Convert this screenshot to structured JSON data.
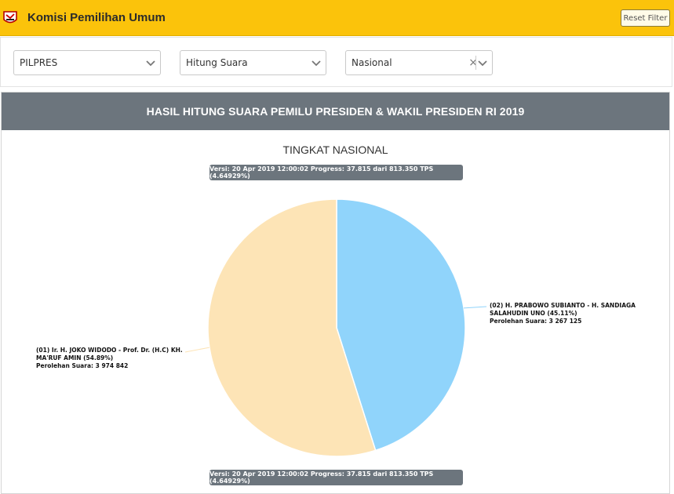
{
  "header": {
    "title": "Komisi Pemilihan Umum",
    "reset_label": "Reset Filter",
    "logo_icon": "kpu-logo-icon"
  },
  "filters": {
    "election": "PILPRES",
    "mode": "Hitung Suara",
    "region": "Nasional",
    "clear_glyph": "×"
  },
  "panel": {
    "title": "HASIL HITUNG SUARA PEMILU PRESIDEN & WAKIL PRESIDEN RI 2019",
    "subtitle": "TINGKAT NASIONAL",
    "version_top": "Versi: 20 Apr 2019 12:00:02 Progress: 37.815 dari 813.350 TPS (4.64929%)",
    "version_bottom": "Versi: 20 Apr 2019 12:00:02 Progress: 37.815 dari 813.350 TPS (4.64929%)"
  },
  "chart_data": {
    "type": "pie",
    "title": "TINGKAT NASIONAL",
    "slices": [
      {
        "line1": "(01) Ir. H. JOKO WIDODO - Prof. Dr. (H.C) KH.",
        "line2": "MA'RUF AMIN (54.89%)",
        "votes_text": "Perolehan Suara: 3 974 842",
        "percent": 54.89,
        "votes": 3974842,
        "color": "#fde4b6"
      },
      {
        "line1": "(02) H. PRABOWO SUBIANTO - H. SANDIAGA",
        "line2": "SALAHUDIN UNO (45.11%)",
        "votes_text": "Perolehan Suara: 3 267 125",
        "percent": 45.11,
        "votes": 3267125,
        "color": "#90d4fb"
      }
    ]
  }
}
